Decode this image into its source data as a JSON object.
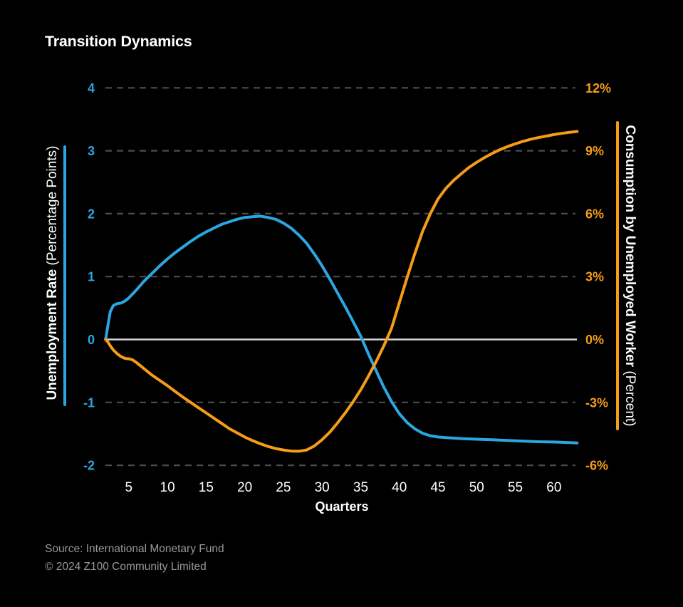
{
  "title": "Transition Dynamics",
  "footer": {
    "source": "Source: International Monetary Fund",
    "copyright": "© 2024 Z100 Community Limited"
  },
  "chart_data": {
    "type": "line",
    "title": "Transition Dynamics",
    "background_color": "#000000",
    "gridline_color": "#4D4D4D",
    "zero_line_color": "#D4D4D4",
    "grid": "dashed horizontal, solid line at zero",
    "legend_position": "none",
    "x_axis": {
      "title": "Quarters",
      "ticks": [
        5,
        10,
        15,
        20,
        25,
        30,
        35,
        40,
        45,
        50,
        55,
        60
      ],
      "range": [
        1,
        64
      ],
      "label_color": "#FFFFFF"
    },
    "left_axis": {
      "title_bold": "Unemployment Rate",
      "title_regular": " (Percentage Points)",
      "ticks": [
        4,
        3,
        2,
        1,
        0,
        -1,
        -2
      ],
      "tick_labels": [
        "4",
        "3",
        "2",
        "1",
        "0",
        "-1",
        "-2"
      ],
      "range": [
        -2,
        4
      ],
      "color": "#2CA6E0"
    },
    "right_axis": {
      "title_bold": "Consumption by Unemployed Worker",
      "title_regular": " (Percent)",
      "ticks": [
        12,
        9,
        6,
        3,
        0,
        -3,
        -6
      ],
      "tick_labels": [
        "12%",
        "9%",
        "6%",
        "3%",
        "0%",
        "-3%",
        "-6%"
      ],
      "range": [
        -6,
        12
      ],
      "color": "#F59D18"
    },
    "series": [
      {
        "name": "Unemployment Rate",
        "axis": "left",
        "color": "#2CA6E0",
        "points": [
          [
            2,
            0
          ],
          [
            2.3,
            0.22
          ],
          [
            2.6,
            0.44
          ],
          [
            3,
            0.54
          ],
          [
            3.5,
            0.57
          ],
          [
            4,
            0.58
          ],
          [
            4.5,
            0.61
          ],
          [
            5,
            0.66
          ],
          [
            6,
            0.79
          ],
          [
            7,
            0.93
          ],
          [
            8,
            1.05
          ],
          [
            9,
            1.17
          ],
          [
            10,
            1.28
          ],
          [
            11,
            1.38
          ],
          [
            12,
            1.47
          ],
          [
            13,
            1.56
          ],
          [
            14,
            1.64
          ],
          [
            15,
            1.71
          ],
          [
            16,
            1.77
          ],
          [
            17,
            1.83
          ],
          [
            18,
            1.87
          ],
          [
            19,
            1.91
          ],
          [
            20,
            1.94
          ],
          [
            21,
            1.95
          ],
          [
            22,
            1.96
          ],
          [
            23,
            1.94
          ],
          [
            24,
            1.91
          ],
          [
            25,
            1.85
          ],
          [
            26,
            1.77
          ],
          [
            27,
            1.66
          ],
          [
            28,
            1.53
          ],
          [
            29,
            1.36
          ],
          [
            30,
            1.17
          ],
          [
            31,
            0.96
          ],
          [
            32,
            0.74
          ],
          [
            33,
            0.52
          ],
          [
            34,
            0.29
          ],
          [
            35,
            0.05
          ],
          [
            36,
            -0.23
          ],
          [
            37,
            -0.5
          ],
          [
            38,
            -0.76
          ],
          [
            39,
            -0.99
          ],
          [
            40,
            -1.18
          ],
          [
            41,
            -1.32
          ],
          [
            42,
            -1.42
          ],
          [
            43,
            -1.49
          ],
          [
            44,
            -1.53
          ],
          [
            45,
            -1.55
          ],
          [
            46,
            -1.56
          ],
          [
            48,
            -1.575
          ],
          [
            50,
            -1.585
          ],
          [
            52,
            -1.595
          ],
          [
            54,
            -1.605
          ],
          [
            56,
            -1.615
          ],
          [
            58,
            -1.625
          ],
          [
            60,
            -1.63
          ],
          [
            62,
            -1.64
          ],
          [
            63,
            -1.645
          ]
        ]
      },
      {
        "name": "Consumption by Unemployed Worker",
        "axis": "right",
        "color": "#F59D18",
        "points": [
          [
            2,
            0
          ],
          [
            2.3,
            -0.12
          ],
          [
            2.6,
            -0.3
          ],
          [
            3,
            -0.5
          ],
          [
            3.5,
            -0.68
          ],
          [
            4,
            -0.82
          ],
          [
            4.5,
            -0.9
          ],
          [
            5,
            -0.92
          ],
          [
            5.5,
            -0.97
          ],
          [
            6,
            -1.1
          ],
          [
            7,
            -1.4
          ],
          [
            8,
            -1.7
          ],
          [
            9,
            -1.95
          ],
          [
            10,
            -2.2
          ],
          [
            11,
            -2.48
          ],
          [
            12,
            -2.75
          ],
          [
            13,
            -3.0
          ],
          [
            14,
            -3.25
          ],
          [
            15,
            -3.5
          ],
          [
            16,
            -3.75
          ],
          [
            17,
            -4.0
          ],
          [
            18,
            -4.25
          ],
          [
            19,
            -4.45
          ],
          [
            20,
            -4.65
          ],
          [
            21,
            -4.82
          ],
          [
            22,
            -4.97
          ],
          [
            23,
            -5.1
          ],
          [
            24,
            -5.2
          ],
          [
            25,
            -5.27
          ],
          [
            26,
            -5.32
          ],
          [
            27,
            -5.33
          ],
          [
            28,
            -5.27
          ],
          [
            29,
            -5.08
          ],
          [
            30,
            -4.78
          ],
          [
            31,
            -4.42
          ],
          [
            32,
            -3.98
          ],
          [
            33,
            -3.5
          ],
          [
            34,
            -2.98
          ],
          [
            35,
            -2.4
          ],
          [
            36,
            -1.75
          ],
          [
            37,
            -1.05
          ],
          [
            38,
            -0.3
          ],
          [
            39,
            0.55
          ],
          [
            40,
            1.75
          ],
          [
            41,
            2.95
          ],
          [
            42,
            4.1
          ],
          [
            43,
            5.15
          ],
          [
            44,
            6.0
          ],
          [
            45,
            6.7
          ],
          [
            46,
            7.2
          ],
          [
            47,
            7.58
          ],
          [
            48,
            7.9
          ],
          [
            49,
            8.2
          ],
          [
            50,
            8.45
          ],
          [
            51,
            8.67
          ],
          [
            52,
            8.87
          ],
          [
            53,
            9.05
          ],
          [
            54,
            9.2
          ],
          [
            55,
            9.33
          ],
          [
            56,
            9.45
          ],
          [
            57,
            9.55
          ],
          [
            58,
            9.63
          ],
          [
            59,
            9.7
          ],
          [
            60,
            9.77
          ],
          [
            61,
            9.83
          ],
          [
            62,
            9.88
          ],
          [
            63,
            9.92
          ]
        ]
      }
    ]
  }
}
